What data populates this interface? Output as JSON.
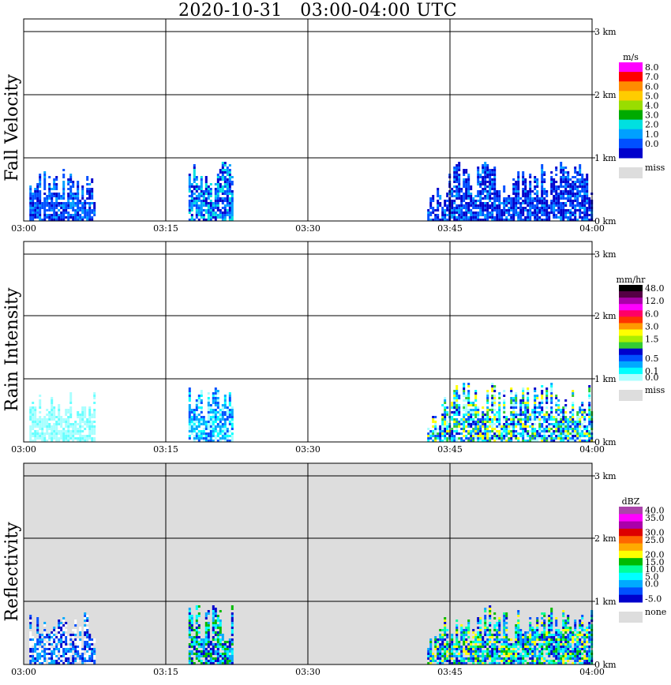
{
  "title": "2020-10-31   03:00-04:00 UTC",
  "x_ticks": [
    "03:00",
    "03:15",
    "03:30",
    "03:45",
    "04:00"
  ],
  "y_ticks": [
    "0 km",
    "1 km",
    "2 km",
    "3 km"
  ],
  "chart_data": [
    {
      "type": "heatmap",
      "title": "Fall Velocity",
      "xlabel": "",
      "ylabel": "Fall Velocity",
      "xlim": [
        "03:00",
        "04:00"
      ],
      "ylim_km": [
        0,
        3.2
      ],
      "background": "#ffffff",
      "colorbar": {
        "unit": "m/s",
        "levels": [
          {
            "label": "8.0",
            "color": "#ff00ff"
          },
          {
            "label": "7.0",
            "color": "#ff0000"
          },
          {
            "label": "6.0",
            "color": "#ff8c00"
          },
          {
            "label": "5.0",
            "color": "#ffcc00"
          },
          {
            "label": "4.0",
            "color": "#99dd00"
          },
          {
            "label": "3.0",
            "color": "#00aa00"
          },
          {
            "label": "2.0",
            "color": "#00e0e0"
          },
          {
            "label": "1.0",
            "color": "#00a0ff"
          },
          {
            "label": "0.0",
            "color": "#0050ff"
          },
          {
            "label": "",
            "color": "#0000cc"
          }
        ],
        "missing": {
          "label": "miss",
          "color": "#dddddd"
        }
      },
      "echoes": [
        {
          "start_min": 0.6,
          "end_min": 7.6,
          "top_km": 0.85,
          "palette": [
            "#0000cc",
            "#0050ff",
            "#0050ff",
            "#00a0ff"
          ]
        },
        {
          "start_min": 17.4,
          "end_min": 22.1,
          "top_km": 0.98,
          "palette": [
            "#0000cc",
            "#0050ff",
            "#00a0ff",
            "#00e0e0"
          ]
        },
        {
          "start_min": 42.6,
          "end_min": 60.0,
          "top_km": 0.98,
          "palette": [
            "#0000cc",
            "#0050ff",
            "#0050ff",
            "#00a0ff",
            "#0000cc"
          ]
        }
      ]
    },
    {
      "type": "heatmap",
      "title": "Rain Intensity",
      "xlabel": "",
      "ylabel": "Rain Intensity",
      "xlim": [
        "03:00",
        "04:00"
      ],
      "ylim_km": [
        0,
        3.2
      ],
      "background": "#ffffff",
      "colorbar": {
        "unit": "mm/hr",
        "levels": [
          {
            "label": "48.0",
            "color": "#000000"
          },
          {
            "label": "",
            "color": "#550044"
          },
          {
            "label": "12.0",
            "color": "#aa00aa"
          },
          {
            "label": "",
            "color": "#ff00ff"
          },
          {
            "label": "6.0",
            "color": "#ff0066"
          },
          {
            "label": "",
            "color": "#ff3300"
          },
          {
            "label": "3.0",
            "color": "#ff9900"
          },
          {
            "label": "",
            "color": "#ffff00"
          },
          {
            "label": "1.5",
            "color": "#aaee00"
          },
          {
            "label": "",
            "color": "#33cc33"
          },
          {
            "label": "",
            "color": "#0000cc"
          },
          {
            "label": "0.5",
            "color": "#0050ff"
          },
          {
            "label": "",
            "color": "#00aaff"
          },
          {
            "label": "0.1",
            "color": "#00ffff"
          },
          {
            "label": "0.0",
            "color": "#aaffff"
          }
        ],
        "missing": {
          "label": "miss",
          "color": "#dddddd"
        }
      },
      "echoes": [
        {
          "start_min": 0.6,
          "end_min": 7.6,
          "top_km": 0.85,
          "palette": [
            "#aaffff",
            "#66ffff",
            "#aaffff"
          ]
        },
        {
          "start_min": 17.4,
          "end_min": 22.1,
          "top_km": 0.98,
          "palette": [
            "#aaffff",
            "#00ffff",
            "#00aaff",
            "#0050ff"
          ]
        },
        {
          "start_min": 42.6,
          "end_min": 60.0,
          "top_km": 0.98,
          "palette": [
            "#aaffff",
            "#00ffff",
            "#00aaff",
            "#0050ff",
            "#0000cc",
            "#33cc33",
            "#ffff00"
          ]
        }
      ]
    },
    {
      "type": "heatmap",
      "title": "Reflectivity",
      "xlabel": "",
      "ylabel": "Reflectivity",
      "xlim": [
        "03:00",
        "04:00"
      ],
      "ylim_km": [
        0,
        3.2
      ],
      "background": "#dddddd",
      "colorbar": {
        "unit": "dBZ",
        "levels": [
          {
            "label": "40.0",
            "color": "#aa44aa"
          },
          {
            "label": "35.0",
            "color": "#ff00ff"
          },
          {
            "label": "",
            "color": "#aa00aa"
          },
          {
            "label": "30.0",
            "color": "#dd0000"
          },
          {
            "label": "25.0",
            "color": "#ff6600"
          },
          {
            "label": "",
            "color": "#ffaa00"
          },
          {
            "label": "20.0",
            "color": "#ffff00"
          },
          {
            "label": "15.0",
            "color": "#00bb00"
          },
          {
            "label": "10.0",
            "color": "#00ff99"
          },
          {
            "label": "5.0",
            "color": "#00ffff"
          },
          {
            "label": "0.0",
            "color": "#00aaff"
          },
          {
            "label": "",
            "color": "#0050ff"
          },
          {
            "label": "-5.0",
            "color": "#0000cc"
          }
        ],
        "missing": {
          "label": "none",
          "color": "#dddddd"
        }
      },
      "echoes": [
        {
          "start_min": 0.6,
          "end_min": 7.6,
          "top_km": 0.85,
          "palette": [
            "#ffffff",
            "#0000cc",
            "#0050ff",
            "#00aaff",
            "#ffffff"
          ]
        },
        {
          "start_min": 17.4,
          "end_min": 22.1,
          "top_km": 0.98,
          "palette": [
            "#0000cc",
            "#00aaff",
            "#00ffff",
            "#00bb00"
          ]
        },
        {
          "start_min": 42.6,
          "end_min": 60.0,
          "top_km": 0.98,
          "palette": [
            "#0050ff",
            "#00aaff",
            "#00ffff",
            "#00ff99",
            "#00bb00",
            "#ffff00",
            "#0000cc"
          ]
        }
      ]
    }
  ]
}
